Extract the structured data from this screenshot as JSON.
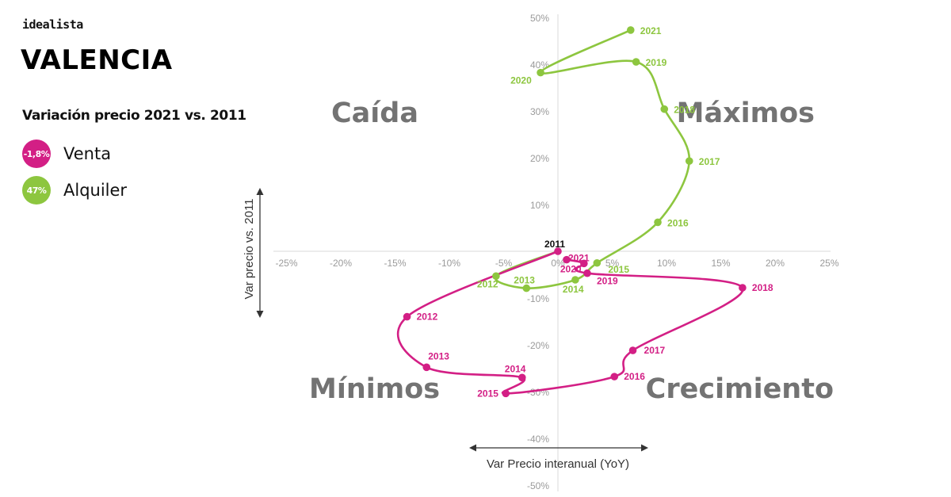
{
  "brand": "idealista",
  "city": "VALENCIA",
  "subtitle": "Variación precio 2021 vs. 2011",
  "legend": [
    {
      "badge": "-1,8%",
      "label": "Venta",
      "color": "#d31f85"
    },
    {
      "badge": "47%",
      "label": "Alquiler",
      "color": "#8dc63f"
    }
  ],
  "chart_data": {
    "type": "line",
    "xlabel": "Var Precio interanual (YoY)",
    "ylabel": "Var precio vs. 2011",
    "xlim": [
      -25,
      25
    ],
    "ylim": [
      -50,
      50
    ],
    "x_ticks": [
      "-25%",
      "-20%",
      "-15%",
      "-10%",
      "-5%",
      "0%",
      "5%",
      "10%",
      "15%",
      "20%",
      "25%"
    ],
    "y_ticks": [
      "50%",
      "40%",
      "30%",
      "20%",
      "10%",
      "-10%",
      "-20%",
      "-30%",
      "-40%",
      "-50%"
    ],
    "grid": false,
    "quadrants": [
      "Caída",
      "Máximos",
      "Mínimos",
      "Crecimiento"
    ],
    "origin_label": "2011",
    "series": [
      {
        "name": "Venta",
        "color": "#d31f85",
        "points": [
          {
            "label": "2011",
            "x": 0,
            "y": 0
          },
          {
            "label": "2012",
            "x": -13.9,
            "y": -14
          },
          {
            "label": "2013",
            "x": -12.1,
            "y": -24.8
          },
          {
            "label": "2014",
            "x": -3.3,
            "y": -27
          },
          {
            "label": "2015",
            "x": -4.8,
            "y": -30.4
          },
          {
            "label": "2016",
            "x": 5.2,
            "y": -26.8
          },
          {
            "label": "2017",
            "x": 6.9,
            "y": -21.2
          },
          {
            "label": "2018",
            "x": 17,
            "y": -7.8
          },
          {
            "label": "2019",
            "x": 2.7,
            "y": -4.7
          },
          {
            "label": "2020",
            "x": 2.4,
            "y": -2.6
          },
          {
            "label": "2021",
            "x": 0.8,
            "y": -1.8
          }
        ]
      },
      {
        "name": "Alquiler",
        "color": "#8dc63f",
        "points": [
          {
            "label": "2011",
            "x": 0,
            "y": 0
          },
          {
            "label": "2012",
            "x": -5.7,
            "y": -5.3
          },
          {
            "label": "2013",
            "x": -2.9,
            "y": -7.9
          },
          {
            "label": "2014",
            "x": 1.6,
            "y": -6.1
          },
          {
            "label": "2015",
            "x": 3.6,
            "y": -2.5
          },
          {
            "label": "2016",
            "x": 9.2,
            "y": 6.2
          },
          {
            "label": "2017",
            "x": 12.1,
            "y": 19.3
          },
          {
            "label": "2018",
            "x": 9.8,
            "y": 30.4
          },
          {
            "label": "2019",
            "x": 7.2,
            "y": 40.5
          },
          {
            "label": "2020",
            "x": -1.6,
            "y": 38.2
          },
          {
            "label": "2021",
            "x": 6.7,
            "y": 47.3
          }
        ]
      }
    ]
  }
}
